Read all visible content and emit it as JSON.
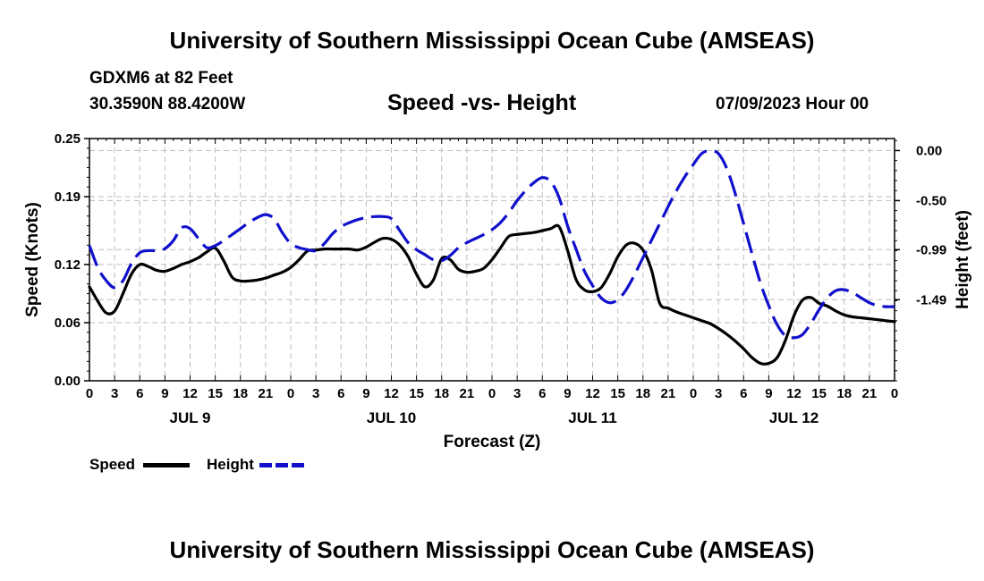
{
  "header": {
    "title": "University of Southern Mississippi Ocean Cube (AMSEAS)",
    "station": "GDXM6 at 82 Feet",
    "coords": "30.3590N  88.4200W",
    "subtitle": "Speed -vs- Height",
    "datetime": "07/09/2023 Hour 00"
  },
  "footer": {
    "title": "University of Southern Mississippi Ocean Cube (AMSEAS)"
  },
  "legend": {
    "speed_label": "Speed",
    "height_label": "Height"
  },
  "colors": {
    "speed": "#000000",
    "height": "#1010cc",
    "grid": "#bdbdbd"
  },
  "chart_data": {
    "type": "line",
    "title": "Speed -vs- Height",
    "xlabel": "Forecast (Z)",
    "ylabel": "Speed (Knots)",
    "y2label": "Height (feet)",
    "xlim": [
      0,
      96
    ],
    "ylim": [
      0,
      0.25
    ],
    "y2lim": [
      -2.3,
      0.12
    ],
    "yticks": [
      0,
      0.06,
      0.12,
      0.19,
      0.25
    ],
    "ytick_labels": [
      "0.00",
      "0.06",
      "0.12",
      "0.19",
      "0.25"
    ],
    "y2ticks": [
      0.0,
      -0.5,
      -0.99,
      -1.49
    ],
    "y2tick_labels": [
      "0.00",
      "-0.50",
      "-0.99",
      "-1.49"
    ],
    "x_tick_labels": [
      "0",
      "3",
      "6",
      "9",
      "12",
      "15",
      "18",
      "21",
      "0",
      "3",
      "6",
      "9",
      "12",
      "15",
      "18",
      "21",
      "0",
      "3",
      "6",
      "9",
      "12",
      "15",
      "18",
      "21",
      "0",
      "3",
      "6",
      "9",
      "12",
      "15",
      "18",
      "21",
      "0"
    ],
    "day_labels": [
      {
        "x": 12,
        "label": "JUL 9"
      },
      {
        "x": 36,
        "label": "JUL 10"
      },
      {
        "x": 60,
        "label": "JUL 11"
      },
      {
        "x": 84,
        "label": "JUL 12"
      }
    ],
    "series": [
      {
        "name": "Speed",
        "axis": "left",
        "style": "solid",
        "points": [
          [
            0,
            0.097
          ],
          [
            1,
            0.082
          ],
          [
            2,
            0.07
          ],
          [
            3,
            0.072
          ],
          [
            4,
            0.09
          ],
          [
            5,
            0.11
          ],
          [
            6,
            0.12
          ],
          [
            7,
            0.118
          ],
          [
            8,
            0.114
          ],
          [
            9,
            0.113
          ],
          [
            10,
            0.116
          ],
          [
            11,
            0.12
          ],
          [
            12,
            0.123
          ],
          [
            13,
            0.127
          ],
          [
            14,
            0.133
          ],
          [
            15,
            0.137
          ],
          [
            16,
            0.124
          ],
          [
            17,
            0.107
          ],
          [
            18,
            0.103
          ],
          [
            19,
            0.103
          ],
          [
            20,
            0.104
          ],
          [
            21,
            0.106
          ],
          [
            22,
            0.109
          ],
          [
            23,
            0.112
          ],
          [
            24,
            0.117
          ],
          [
            25,
            0.125
          ],
          [
            26,
            0.134
          ],
          [
            27,
            0.135
          ],
          [
            28,
            0.136
          ],
          [
            29,
            0.136
          ],
          [
            30,
            0.136
          ],
          [
            31,
            0.136
          ],
          [
            32,
            0.135
          ],
          [
            33,
            0.138
          ],
          [
            34,
            0.143
          ],
          [
            35,
            0.147
          ],
          [
            36,
            0.146
          ],
          [
            37,
            0.14
          ],
          [
            38,
            0.128
          ],
          [
            39,
            0.11
          ],
          [
            40,
            0.097
          ],
          [
            41,
            0.104
          ],
          [
            42,
            0.126
          ],
          [
            43,
            0.125
          ],
          [
            44,
            0.115
          ],
          [
            45,
            0.112
          ],
          [
            46,
            0.113
          ],
          [
            47,
            0.116
          ],
          [
            48,
            0.125
          ],
          [
            49,
            0.137
          ],
          [
            50,
            0.149
          ],
          [
            51,
            0.151
          ],
          [
            52,
            0.152
          ],
          [
            53,
            0.153
          ],
          [
            54,
            0.155
          ],
          [
            55,
            0.157
          ],
          [
            56,
            0.159
          ],
          [
            57,
            0.135
          ],
          [
            58,
            0.105
          ],
          [
            59,
            0.094
          ],
          [
            60,
            0.092
          ],
          [
            61,
            0.096
          ],
          [
            62,
            0.11
          ],
          [
            63,
            0.128
          ],
          [
            64,
            0.14
          ],
          [
            65,
            0.142
          ],
          [
            66,
            0.135
          ],
          [
            67,
            0.115
          ],
          [
            68,
            0.08
          ],
          [
            69,
            0.075
          ],
          [
            70,
            0.071
          ],
          [
            71,
            0.068
          ],
          [
            72,
            0.065
          ],
          [
            73,
            0.062
          ],
          [
            74,
            0.059
          ],
          [
            75,
            0.054
          ],
          [
            76,
            0.048
          ],
          [
            77,
            0.041
          ],
          [
            78,
            0.033
          ],
          [
            79,
            0.024
          ],
          [
            80,
            0.018
          ],
          [
            81,
            0.018
          ],
          [
            82,
            0.024
          ],
          [
            83,
            0.042
          ],
          [
            84,
            0.067
          ],
          [
            85,
            0.083
          ],
          [
            86,
            0.086
          ],
          [
            87,
            0.08
          ],
          [
            88,
            0.077
          ],
          [
            89,
            0.072
          ],
          [
            90,
            0.068
          ],
          [
            91,
            0.066
          ],
          [
            92,
            0.065
          ],
          [
            93,
            0.064
          ],
          [
            94,
            0.063
          ],
          [
            95,
            0.062
          ],
          [
            96,
            0.061
          ]
        ]
      },
      {
        "name": "Height",
        "axis": "right",
        "style": "dashed",
        "points": [
          [
            0,
            -0.95
          ],
          [
            1,
            -1.17
          ],
          [
            2,
            -1.3
          ],
          [
            3,
            -1.37
          ],
          [
            4,
            -1.3
          ],
          [
            5,
            -1.13
          ],
          [
            6,
            -1.02
          ],
          [
            7,
            -1.0
          ],
          [
            8,
            -1.0
          ],
          [
            9,
            -0.98
          ],
          [
            10,
            -0.9
          ],
          [
            11,
            -0.77
          ],
          [
            12,
            -0.78
          ],
          [
            13,
            -0.88
          ],
          [
            14,
            -0.97
          ],
          [
            15,
            -0.95
          ],
          [
            16,
            -0.9
          ],
          [
            17,
            -0.84
          ],
          [
            18,
            -0.78
          ],
          [
            19,
            -0.72
          ],
          [
            20,
            -0.67
          ],
          [
            21,
            -0.64
          ],
          [
            22,
            -0.68
          ],
          [
            23,
            -0.82
          ],
          [
            24,
            -0.93
          ],
          [
            25,
            -0.97
          ],
          [
            26,
            -0.99
          ],
          [
            27,
            -1.0
          ],
          [
            28,
            -0.93
          ],
          [
            29,
            -0.83
          ],
          [
            30,
            -0.76
          ],
          [
            31,
            -0.72
          ],
          [
            32,
            -0.69
          ],
          [
            33,
            -0.67
          ],
          [
            34,
            -0.66
          ],
          [
            35,
            -0.66
          ],
          [
            36,
            -0.68
          ],
          [
            37,
            -0.8
          ],
          [
            38,
            -0.92
          ],
          [
            39,
            -0.99
          ],
          [
            40,
            -1.04
          ],
          [
            41,
            -1.09
          ],
          [
            42,
            -1.1
          ],
          [
            43,
            -1.05
          ],
          [
            44,
            -0.97
          ],
          [
            45,
            -0.92
          ],
          [
            46,
            -0.88
          ],
          [
            47,
            -0.84
          ],
          [
            48,
            -0.79
          ],
          [
            49,
            -0.72
          ],
          [
            50,
            -0.62
          ],
          [
            51,
            -0.5
          ],
          [
            52,
            -0.4
          ],
          [
            53,
            -0.32
          ],
          [
            54,
            -0.27
          ],
          [
            55,
            -0.31
          ],
          [
            56,
            -0.47
          ],
          [
            57,
            -0.75
          ],
          [
            58,
            -0.98
          ],
          [
            59,
            -1.2
          ],
          [
            60,
            -1.35
          ],
          [
            61,
            -1.47
          ],
          [
            62,
            -1.52
          ],
          [
            63,
            -1.49
          ],
          [
            64,
            -1.39
          ],
          [
            65,
            -1.24
          ],
          [
            66,
            -1.07
          ],
          [
            67,
            -0.9
          ],
          [
            68,
            -0.73
          ],
          [
            69,
            -0.56
          ],
          [
            70,
            -0.4
          ],
          [
            71,
            -0.26
          ],
          [
            72,
            -0.14
          ],
          [
            73,
            -0.03
          ],
          [
            74,
            0.0
          ],
          [
            75,
            -0.03
          ],
          [
            76,
            -0.18
          ],
          [
            77,
            -0.43
          ],
          [
            78,
            -0.73
          ],
          [
            79,
            -1.03
          ],
          [
            80,
            -1.32
          ],
          [
            81,
            -1.55
          ],
          [
            82,
            -1.74
          ],
          [
            83,
            -1.85
          ],
          [
            84,
            -1.87
          ],
          [
            85,
            -1.84
          ],
          [
            86,
            -1.73
          ],
          [
            87,
            -1.59
          ],
          [
            88,
            -1.47
          ],
          [
            89,
            -1.4
          ],
          [
            90,
            -1.39
          ],
          [
            91,
            -1.42
          ],
          [
            92,
            -1.47
          ],
          [
            93,
            -1.52
          ],
          [
            94,
            -1.55
          ],
          [
            95,
            -1.56
          ],
          [
            96,
            -1.56
          ]
        ]
      }
    ]
  }
}
